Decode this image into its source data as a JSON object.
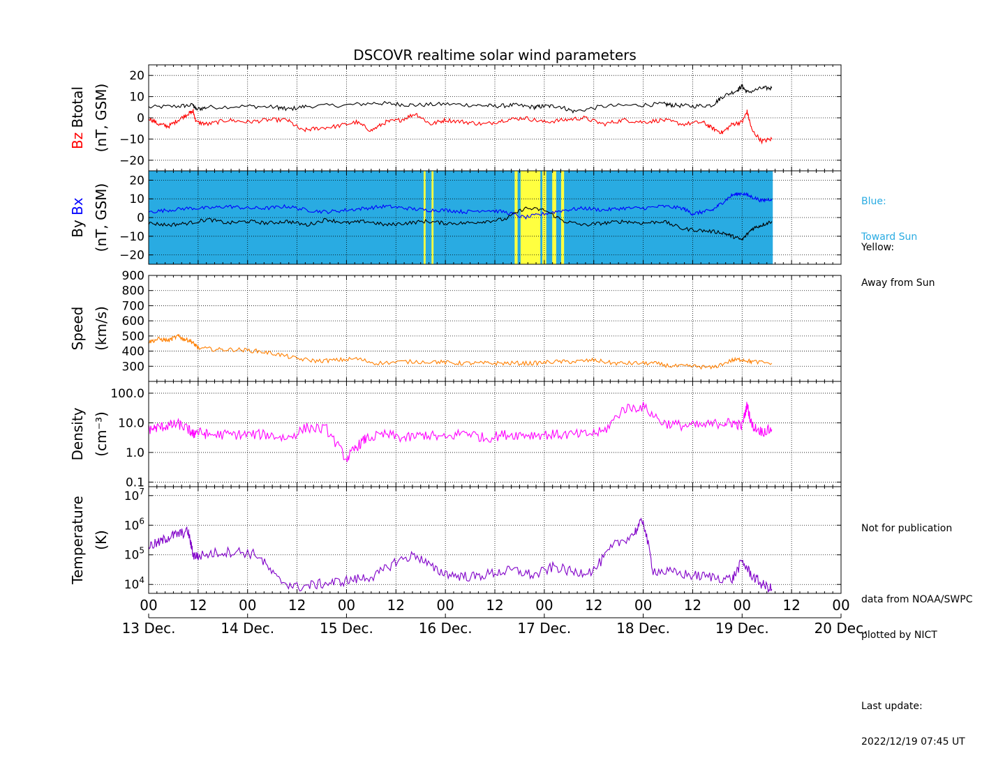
{
  "title": "DSCOVR realtime solar wind parameters",
  "colors": {
    "btotal": "#000000",
    "bz": "#ff0000",
    "bx": "#0000ff",
    "by": "#000000",
    "speed": "#ff7f00",
    "density": "#ff00ff",
    "temperature": "#8000c8",
    "toward_sun": "#29abe2",
    "away_sun": "#ffff40"
  },
  "notes": {
    "blue_line1": "Blue:",
    "blue_line2": "Toward Sun",
    "yellow_line1": "Yellow:",
    "yellow_line2": "Away from Sun",
    "not_for_pub": "Not for publication",
    "data_from": "data from NOAA/SWPC",
    "plotted_by": "plotted by NICT",
    "last_update_label": "Last update:",
    "last_update": "2022/12/19 07:45 UT"
  },
  "chart_data": [
    {
      "type": "line",
      "panel": "magnetic-field-bz-btotal",
      "ylabel_parts": [
        "Bz",
        "Btotal",
        "(nT, GSM)"
      ],
      "ylim": [
        -25,
        25
      ],
      "yticks": [
        20,
        10,
        0,
        -10,
        -20
      ],
      "ytick_labels": [
        "20",
        "10",
        "0",
        "−10",
        "−20"
      ],
      "xlim_days": [
        0,
        7
      ],
      "series": [
        {
          "name": "Btotal",
          "color": "#000000",
          "x": [
            0,
            0.3,
            0.45,
            0.48,
            0.6,
            1.0,
            1.3,
            1.4,
            1.6,
            2.0,
            2.3,
            2.5,
            2.7,
            3.0,
            3.3,
            3.5,
            3.7,
            3.9,
            4.0,
            4.15,
            4.3,
            4.6,
            4.95,
            5.2,
            5.3,
            5.5,
            5.7,
            5.8,
            5.95,
            6.0,
            6.05,
            6.2,
            6.3
          ],
          "y": [
            5,
            5.5,
            6,
            4,
            5,
            5.5,
            5,
            4,
            5.5,
            6,
            7,
            6.5,
            6,
            6.5,
            6,
            5.5,
            6,
            5,
            5.5,
            5.5,
            3,
            5.5,
            6,
            6.5,
            6,
            5.5,
            6,
            10,
            13,
            15,
            12,
            14,
            14
          ]
        },
        {
          "name": "Bz",
          "color": "#ff0000",
          "x": [
            0,
            0.1,
            0.2,
            0.3,
            0.4,
            0.45,
            0.48,
            0.6,
            0.8,
            1.0,
            1.2,
            1.4,
            1.55,
            1.7,
            1.9,
            2.1,
            2.25,
            2.4,
            2.55,
            2.7,
            2.85,
            3.0,
            3.2,
            3.4,
            3.6,
            3.8,
            4.0,
            4.2,
            4.4,
            4.6,
            4.8,
            5.0,
            5.2,
            5.4,
            5.6,
            5.7,
            5.8,
            5.9,
            6.0,
            6.05,
            6.1,
            6.2,
            6.3
          ],
          "y": [
            0,
            -3,
            -4,
            -1,
            2,
            3,
            -2,
            -3,
            -1,
            -2,
            -1,
            -1,
            -6,
            -5,
            -4,
            -2,
            -6,
            -2,
            -1,
            2,
            -3,
            -1,
            -2,
            -3,
            -1,
            0,
            -2,
            -1,
            0,
            -3,
            -1,
            -2,
            -1,
            -3,
            -2,
            -5,
            -7,
            -3,
            -2,
            3,
            -6,
            -11,
            -10
          ]
        }
      ]
    },
    {
      "type": "line",
      "panel": "magnetic-field-bx-by",
      "ylabel_parts": [
        "By",
        "Bx",
        "(nT, GSM)"
      ],
      "ylim": [
        -25,
        25
      ],
      "yticks": [
        20,
        10,
        0,
        -10,
        -20
      ],
      "ytick_labels": [
        "20",
        "10",
        "0",
        "−10",
        "−20"
      ],
      "xlim_days": [
        0,
        7
      ],
      "sector_background": {
        "data_end_day": 6.31,
        "toward_color": "#29abe2",
        "away_color": "#ffff40",
        "away_intervals": [
          [
            3.7,
            3.73
          ],
          [
            3.76,
            3.96
          ],
          [
            3.98,
            4.02
          ],
          [
            4.08,
            4.12
          ],
          [
            4.17,
            4.2
          ],
          [
            2.78,
            2.8
          ],
          [
            2.86,
            2.88
          ]
        ]
      },
      "series": [
        {
          "name": "Bx",
          "color": "#0000ff",
          "x": [
            0,
            0.2,
            0.4,
            0.6,
            0.8,
            1.0,
            1.2,
            1.4,
            1.6,
            1.8,
            2.0,
            2.2,
            2.4,
            2.6,
            2.8,
            3.0,
            3.2,
            3.4,
            3.6,
            3.8,
            4.0,
            4.2,
            4.4,
            4.6,
            4.8,
            5.0,
            5.2,
            5.4,
            5.5,
            5.6,
            5.7,
            5.8,
            5.9,
            6.0,
            6.1,
            6.2,
            6.3
          ],
          "y": [
            3,
            4,
            5,
            5,
            6,
            5,
            5,
            6,
            4,
            3,
            4,
            5,
            6,
            5,
            4,
            4,
            3,
            4,
            3,
            0,
            2,
            4,
            5,
            4,
            5,
            5,
            6,
            5,
            2,
            3,
            4,
            8,
            12,
            13,
            11,
            9,
            10
          ]
        },
        {
          "name": "By",
          "color": "#000000",
          "x": [
            0,
            0.2,
            0.4,
            0.6,
            0.8,
            1.0,
            1.2,
            1.4,
            1.6,
            1.8,
            2.0,
            2.2,
            2.4,
            2.6,
            2.8,
            3.0,
            3.2,
            3.4,
            3.6,
            3.8,
            4.0,
            4.2,
            4.4,
            4.6,
            4.8,
            5.0,
            5.2,
            5.4,
            5.6,
            5.8,
            5.9,
            6.0,
            6.1,
            6.2,
            6.3
          ],
          "y": [
            -3,
            -4,
            -3,
            -1,
            -3,
            -2,
            -3,
            -2,
            -4,
            -1,
            -3,
            -2,
            -4,
            -3,
            -2,
            -3,
            -3,
            -2,
            -1,
            5,
            4,
            -2,
            -4,
            -3,
            -2,
            -3,
            -2,
            -6,
            -7,
            -8,
            -10,
            -12,
            -6,
            -4,
            -2
          ]
        }
      ]
    },
    {
      "type": "line",
      "panel": "speed",
      "ylabel_parts": [
        "Speed",
        "(km/s)"
      ],
      "ylim": [
        200,
        900
      ],
      "yticks": [
        900,
        800,
        700,
        600,
        500,
        400,
        300
      ],
      "ytick_labels": [
        "900",
        "800",
        "700",
        "600",
        "500",
        "400",
        "300"
      ],
      "xlim_days": [
        0,
        7
      ],
      "series": [
        {
          "name": "Speed",
          "color": "#ff7f00",
          "x": [
            0,
            0.1,
            0.2,
            0.3,
            0.35,
            0.42,
            0.47,
            0.5,
            0.7,
            0.9,
            1.1,
            1.3,
            1.5,
            1.7,
            1.9,
            2.1,
            2.3,
            2.6,
            2.9,
            3.1,
            3.3,
            3.5,
            3.7,
            3.9,
            4.1,
            4.3,
            4.5,
            4.7,
            4.9,
            5.1,
            5.3,
            5.5,
            5.7,
            5.9,
            6.0,
            6.1,
            6.3
          ],
          "y": [
            460,
            480,
            470,
            500,
            480,
            470,
            440,
            420,
            410,
            410,
            400,
            380,
            350,
            335,
            340,
            350,
            320,
            330,
            330,
            320,
            320,
            320,
            320,
            320,
            330,
            330,
            340,
            320,
            320,
            320,
            300,
            300,
            290,
            340,
            345,
            330,
            320
          ]
        }
      ]
    },
    {
      "type": "line",
      "panel": "density",
      "ylabel_parts": [
        "Density",
        "(cm⁻³)"
      ],
      "yscale": "log",
      "ylim": [
        0.07,
        250
      ],
      "yticks": [
        100,
        10,
        1,
        0.1
      ],
      "ytick_labels": [
        "100.0",
        "10.0",
        "1.0",
        "0.1"
      ],
      "xlim_days": [
        0,
        7
      ],
      "series": [
        {
          "name": "Density",
          "color": "#ff00ff",
          "x": [
            0,
            0.1,
            0.2,
            0.3,
            0.4,
            0.45,
            0.48,
            0.6,
            0.8,
            1.0,
            1.2,
            1.4,
            1.6,
            1.8,
            2.0,
            2.1,
            2.2,
            2.4,
            2.6,
            2.8,
            3.0,
            3.2,
            3.4,
            3.6,
            3.8,
            4.0,
            4.2,
            4.4,
            4.6,
            4.8,
            5.0,
            5.2,
            5.4,
            5.6,
            5.8,
            5.9,
            6.0,
            6.05,
            6.1,
            6.2,
            6.3
          ],
          "y": [
            6,
            7,
            8,
            9,
            6,
            4,
            5,
            4,
            4,
            4,
            4,
            3,
            7,
            6,
            0.6,
            1.5,
            3,
            4,
            3,
            4,
            3,
            5,
            3,
            4,
            4,
            4,
            4,
            4,
            5,
            30,
            35,
            10,
            8,
            8,
            10,
            10,
            8,
            40,
            8,
            5,
            6
          ]
        }
      ]
    },
    {
      "type": "line",
      "panel": "temperature",
      "ylabel_parts": [
        "Temperature",
        "(K)"
      ],
      "yscale": "log",
      "ylim": [
        5000,
        20000000
      ],
      "yticks": [
        10000000,
        1000000,
        100000,
        10000
      ],
      "ytick_labels": [
        "10^7",
        "10^6",
        "10^5",
        "10^4"
      ],
      "xlim_days": [
        0,
        7
      ],
      "series": [
        {
          "name": "Temperature",
          "color": "#8000c8",
          "x": [
            0,
            0.1,
            0.2,
            0.3,
            0.4,
            0.45,
            0.5,
            0.7,
            0.9,
            1.1,
            1.3,
            1.5,
            1.7,
            1.9,
            2.1,
            2.3,
            2.5,
            2.7,
            2.9,
            3.1,
            3.3,
            3.5,
            3.7,
            3.9,
            4.1,
            4.3,
            4.5,
            4.7,
            4.9,
            5.0,
            5.1,
            5.3,
            5.5,
            5.7,
            5.9,
            6.0,
            6.1,
            6.2,
            6.3
          ],
          "y": [
            200000,
            250000,
            400000,
            500000,
            600000,
            100000,
            90000,
            120000,
            130000,
            100000,
            15000,
            8000,
            10000,
            12000,
            15000,
            20000,
            60000,
            100000,
            30000,
            20000,
            18000,
            25000,
            30000,
            20000,
            40000,
            25000,
            30000,
            200000,
            500000,
            1500000,
            30000,
            25000,
            20000,
            18000,
            15000,
            60000,
            20000,
            10000,
            7000
          ]
        }
      ]
    }
  ],
  "xaxis": {
    "hour_labels": [
      "00",
      "12",
      "00",
      "12",
      "00",
      "12",
      "00",
      "12",
      "00",
      "12",
      "00",
      "12",
      "00",
      "12",
      "00"
    ],
    "date_labels": [
      "13 Dec.",
      "14 Dec.",
      "15 Dec.",
      "16 Dec.",
      "17 Dec.",
      "18 Dec.",
      "19 Dec.",
      "20 Dec."
    ]
  }
}
